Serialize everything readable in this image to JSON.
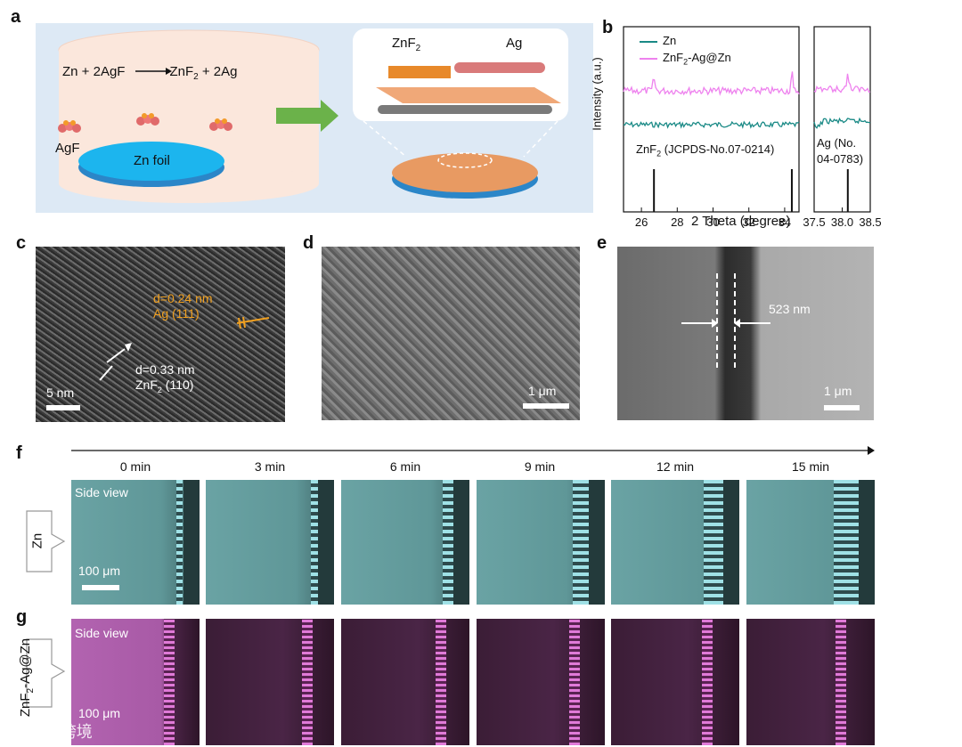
{
  "panel_labels": {
    "a": "a",
    "b": "b",
    "c": "c",
    "d": "d",
    "e": "e",
    "f": "f",
    "g": "g"
  },
  "panel_a": {
    "reaction_left": "Zn + 2AgF",
    "reaction_right_zn": "ZnF",
    "reaction_right_sub": "2",
    "reaction_right_rest": " + 2Ag",
    "agf_label": "AgF",
    "zn_foil_label": "Zn foil",
    "znf2_label": "ZnF",
    "znf2_sub": "2",
    "ag_label": "Ag"
  },
  "panel_b": {
    "ylabel": "Intensity (a.u.)",
    "xlabel": "2 Theta (degree)",
    "legend_zn": "Zn",
    "legend_znf2_pre": "ZnF",
    "legend_znf2_sub": "2",
    "legend_znf2_post": "-Ag@Zn",
    "ref_znf2_pre": "ZnF",
    "ref_znf2_sub": "2",
    "ref_znf2_post": " (JCPDS-No.07-0214)",
    "ref_ag_line1": "Ag (No.",
    "ref_ag_line2": "04-0783)",
    "colors": {
      "zn": "#1a8a86",
      "znf2": "#ee82ee"
    }
  },
  "panel_c": {
    "d1_line1": "d=0.24 nm",
    "d1_line2": "Ag (111)",
    "d2_line1": "d=0.33 nm",
    "d2_pre": "ZnF",
    "d2_sub": "2",
    "d2_post": " (110)",
    "scale": "5 nm"
  },
  "panel_d": {
    "scale": "1 μm"
  },
  "panel_e": {
    "thickness": "523 nm",
    "scale": "1 μm"
  },
  "panel_f": {
    "times": [
      "0 min",
      "3 min",
      "6 min",
      "9 min",
      "12 min",
      "15 min"
    ],
    "side_view": "Side view",
    "row_label": "Zn",
    "scale": "100 μm"
  },
  "panel_g": {
    "side_view": "Side view",
    "row_pre": "ZnF",
    "row_sub": "2",
    "row_post": "-Ag@Zn",
    "scale": "100 μm"
  },
  "watermark": "大数跨境",
  "chart_data": [
    {
      "type": "line",
      "xlabel": "2 Theta (degree)",
      "ylabel": "Intensity (a.u.)",
      "xlim": [
        25,
        34.8
      ],
      "x_ticks": [
        26,
        28,
        30,
        32,
        34
      ],
      "series": [
        {
          "name": "Zn"
        },
        {
          "name": "ZnF2-Ag@Zn"
        }
      ],
      "reference_lines": [
        26.7,
        34.4
      ],
      "reference_label": "ZnF2 (JCPDS-No.07-0214)"
    },
    {
      "type": "line",
      "xlim": [
        37.5,
        38.5
      ],
      "x_ticks": [
        37.5,
        38.0,
        38.5
      ],
      "series": [
        {
          "name": "Zn"
        },
        {
          "name": "ZnF2-Ag@Zn"
        }
      ],
      "reference_lines": [
        38.1
      ],
      "reference_label": "Ag (No. 04-0783)"
    }
  ]
}
